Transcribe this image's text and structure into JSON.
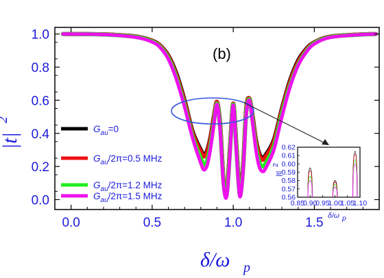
{
  "chart_data": [
    {
      "type": "line",
      "panel_label": "(b)",
      "xlabel": "δ/ω",
      "xlabel_sub": "p",
      "ylabel": "|t|",
      "ylabel_sup": "2",
      "xlim": [
        -0.1,
        1.9
      ],
      "ylim": [
        -0.06,
        1.04
      ],
      "x_ticks": [
        0.0,
        0.5,
        1.0,
        1.5
      ],
      "x_tick_labels": [
        "0.0",
        "0.5",
        "1.0",
        "1.5"
      ],
      "y_ticks": [
        0.0,
        0.2,
        0.4,
        0.6,
        0.8,
        1.0
      ],
      "y_tick_labels": [
        "0.0",
        "0.2",
        "0.4",
        "0.6",
        "0.8",
        "1.0"
      ],
      "grid": false,
      "legend_position": "left",
      "series": [
        {
          "name": "G_au=0",
          "legend_main": "G",
          "legend_sub": "au",
          "legend_rest": "=0",
          "color": "#000000",
          "x": [
            -0.05,
            0.2,
            0.4,
            0.5,
            0.55,
            0.6,
            0.65,
            0.7,
            0.75,
            0.8,
            0.82,
            0.84,
            0.86,
            0.88,
            0.9,
            0.92,
            0.94,
            0.96,
            0.98,
            1.0,
            1.02,
            1.04,
            1.06,
            1.08,
            1.1,
            1.12,
            1.14,
            1.16,
            1.18,
            1.2,
            1.25,
            1.3,
            1.35,
            1.4,
            1.45,
            1.5,
            1.6,
            1.8,
            1.88
          ],
          "y": [
            1.0,
            0.998,
            0.985,
            0.96,
            0.93,
            0.87,
            0.76,
            0.6,
            0.41,
            0.3,
            0.27,
            0.3,
            0.38,
            0.5,
            0.59,
            0.45,
            0.12,
            0.05,
            0.32,
            0.58,
            0.32,
            0.05,
            0.2,
            0.55,
            0.61,
            0.5,
            0.36,
            0.28,
            0.25,
            0.27,
            0.36,
            0.55,
            0.72,
            0.84,
            0.91,
            0.95,
            0.985,
            0.998,
            1.0
          ]
        },
        {
          "name": "G_au/2π=0.5 MHz",
          "legend_main": "G",
          "legend_sub": "au",
          "legend_rest": "/2π=0.5 MHz",
          "color": "#ee1111",
          "x": [
            -0.05,
            0.2,
            0.4,
            0.5,
            0.55,
            0.6,
            0.65,
            0.7,
            0.75,
            0.8,
            0.82,
            0.84,
            0.86,
            0.88,
            0.9,
            0.92,
            0.94,
            0.96,
            0.98,
            1.0,
            1.02,
            1.04,
            1.06,
            1.08,
            1.1,
            1.12,
            1.14,
            1.16,
            1.18,
            1.2,
            1.25,
            1.3,
            1.35,
            1.4,
            1.45,
            1.5,
            1.6,
            1.8,
            1.88
          ],
          "y": [
            1.0,
            0.998,
            0.984,
            0.958,
            0.928,
            0.865,
            0.75,
            0.59,
            0.4,
            0.29,
            0.26,
            0.29,
            0.37,
            0.49,
            0.59,
            0.44,
            0.12,
            0.04,
            0.31,
            0.58,
            0.31,
            0.04,
            0.19,
            0.54,
            0.61,
            0.49,
            0.35,
            0.27,
            0.24,
            0.26,
            0.35,
            0.54,
            0.71,
            0.83,
            0.905,
            0.948,
            0.984,
            0.998,
            1.0
          ]
        },
        {
          "name": "G_au/2π=1.2 MHz",
          "legend_main": "G",
          "legend_sub": "au",
          "legend_rest": "/2π=1.2 MHz",
          "color": "#22ee22",
          "x": [
            -0.05,
            0.2,
            0.4,
            0.5,
            0.55,
            0.6,
            0.65,
            0.7,
            0.75,
            0.8,
            0.82,
            0.84,
            0.86,
            0.88,
            0.9,
            0.92,
            0.94,
            0.96,
            0.98,
            1.0,
            1.02,
            1.04,
            1.06,
            1.08,
            1.1,
            1.12,
            1.14,
            1.16,
            1.18,
            1.2,
            1.25,
            1.3,
            1.35,
            1.4,
            1.45,
            1.5,
            1.6,
            1.8,
            1.88
          ],
          "y": [
            1.0,
            0.997,
            0.982,
            0.955,
            0.922,
            0.855,
            0.735,
            0.57,
            0.38,
            0.25,
            0.21,
            0.24,
            0.33,
            0.46,
            0.58,
            0.42,
            0.1,
            0.03,
            0.29,
            0.575,
            0.29,
            0.03,
            0.17,
            0.52,
            0.605,
            0.47,
            0.32,
            0.23,
            0.2,
            0.22,
            0.32,
            0.52,
            0.69,
            0.815,
            0.895,
            0.944,
            0.982,
            0.997,
            1.0
          ]
        },
        {
          "name": "G_au/2π=1.5 MHz",
          "legend_main": "G",
          "legend_sub": "au",
          "legend_rest": "/2π=1.5 MHz",
          "color": "#ee11ee",
          "x": [
            -0.05,
            0.2,
            0.4,
            0.5,
            0.55,
            0.6,
            0.65,
            0.7,
            0.75,
            0.8,
            0.82,
            0.84,
            0.86,
            0.88,
            0.9,
            0.92,
            0.94,
            0.96,
            0.98,
            1.0,
            1.02,
            1.04,
            1.06,
            1.08,
            1.1,
            1.12,
            1.14,
            1.16,
            1.18,
            1.2,
            1.25,
            1.3,
            1.35,
            1.4,
            1.45,
            1.5,
            1.6,
            1.8,
            1.88
          ],
          "y": [
            1.0,
            0.997,
            0.98,
            0.952,
            0.918,
            0.848,
            0.725,
            0.56,
            0.37,
            0.22,
            0.18,
            0.21,
            0.31,
            0.45,
            0.575,
            0.41,
            0.09,
            0.02,
            0.28,
            0.57,
            0.28,
            0.02,
            0.16,
            0.51,
            0.6,
            0.46,
            0.3,
            0.2,
            0.17,
            0.19,
            0.3,
            0.5,
            0.68,
            0.81,
            0.89,
            0.94,
            0.98,
            0.997,
            1.0
          ]
        }
      ]
    },
    {
      "type": "line",
      "role": "inset",
      "xlabel": "δ/ω",
      "xlabel_sub": "p",
      "ylabel": "|t|",
      "ylabel_sup": "2",
      "xlim": [
        0.85,
        1.1
      ],
      "ylim": [
        0.56,
        0.62
      ],
      "x_ticks": [
        0.85,
        0.9,
        0.95,
        1.0,
        1.05,
        1.1
      ],
      "x_tick_labels": [
        "0.85",
        "0.90",
        "0.95",
        "1.00",
        "1.05",
        "1.10"
      ],
      "y_ticks": [
        0.56,
        0.57,
        0.58,
        0.59,
        0.6,
        0.61,
        0.62
      ],
      "y_tick_labels": [
        "0.56",
        "0.57",
        "0.58",
        "0.59",
        "0.60",
        "0.61",
        "0.62"
      ],
      "peaks": [
        {
          "x": 0.9,
          "values": [
            0.595,
            0.592,
            0.585,
            0.58
          ]
        },
        {
          "x": 1.0,
          "values": [
            0.58,
            0.578,
            0.575,
            0.572
          ]
        },
        {
          "x": 1.08,
          "values": [
            0.615,
            0.612,
            0.605,
            0.6
          ]
        }
      ]
    }
  ]
}
